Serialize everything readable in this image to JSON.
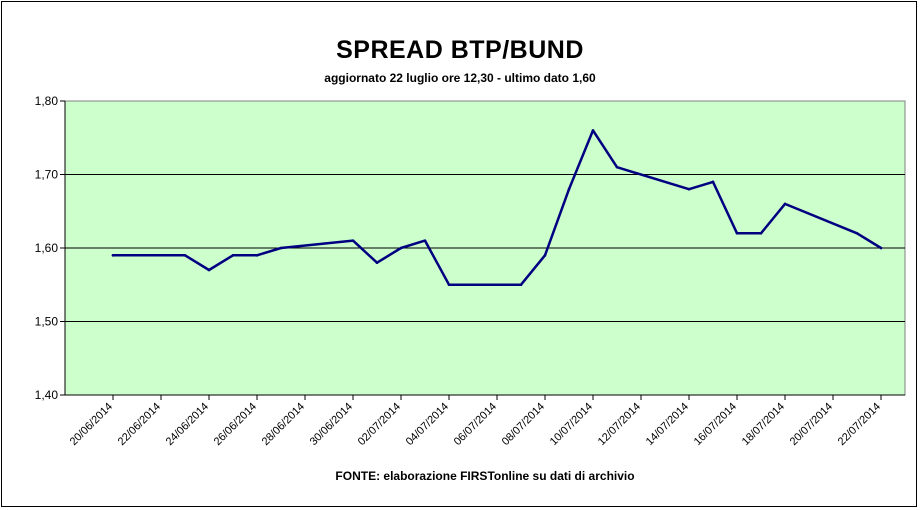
{
  "chart_data": {
    "type": "line",
    "title": "SPREAD BTP/BUND",
    "subtitle": "aggiornato 22 luglio ore 12,30 - ultimo dato 1,60",
    "source": "FONTE: elaborazione FIRSTonline su dati di archivio",
    "xlabel": "",
    "ylabel": "",
    "ylim": [
      1.4,
      1.8
    ],
    "yticks": [
      "1,40",
      "1,50",
      "1,60",
      "1,70",
      "1,80"
    ],
    "xticks": [
      "20/06/2014",
      "22/06/2014",
      "24/06/2014",
      "26/06/2014",
      "28/06/2014",
      "30/06/2014",
      "02/07/2014",
      "04/07/2014",
      "06/07/2014",
      "08/07/2014",
      "10/07/2014",
      "12/07/2014",
      "14/07/2014",
      "16/07/2014",
      "18/07/2014",
      "20/07/2014",
      "22/07/2014"
    ],
    "grid": "horizontal",
    "colors": {
      "plot_background": "#ccffcc",
      "line": "#000080",
      "gridline": "#000000"
    },
    "series": [
      {
        "x": [
          "20/06/2014",
          "23/06/2014",
          "24/06/2014",
          "25/06/2014",
          "26/06/2014",
          "27/06/2014",
          "30/06/2014",
          "01/07/2014",
          "02/07/2014",
          "03/07/2014",
          "04/07/2014",
          "07/07/2014",
          "08/07/2014",
          "09/07/2014",
          "10/07/2014",
          "11/07/2014",
          "14/07/2014",
          "15/07/2014",
          "16/07/2014",
          "17/07/2014",
          "18/07/2014",
          "21/07/2014",
          "22/07/2014"
        ],
        "values": [
          1.59,
          1.59,
          1.57,
          1.59,
          1.59,
          1.6,
          1.61,
          1.58,
          1.6,
          1.61,
          1.55,
          1.55,
          1.59,
          1.68,
          1.76,
          1.71,
          1.68,
          1.69,
          1.62,
          1.62,
          1.66,
          1.62,
          1.6
        ]
      }
    ]
  }
}
